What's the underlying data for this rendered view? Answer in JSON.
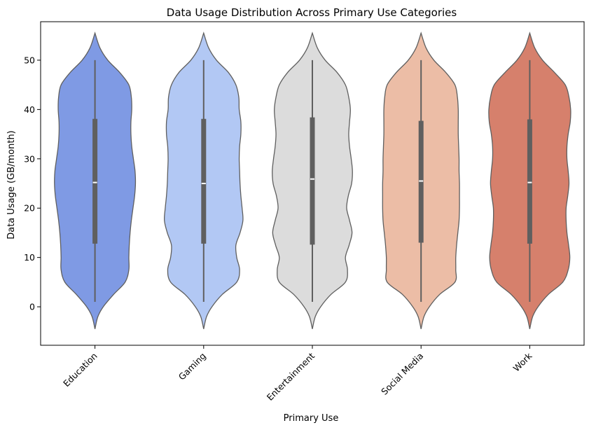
{
  "chart_data": {
    "type": "violin",
    "title": "Data Usage Distribution Across Primary Use Categories",
    "xlabel": "Primary Use",
    "ylabel": "Data Usage (GB/month)",
    "ylim": [
      -7.8,
      57.8
    ],
    "yticks": [
      0,
      10,
      20,
      30,
      40,
      50
    ],
    "grid": false,
    "legend": "none",
    "categories": [
      "Education",
      "Gaming",
      "Entertainment",
      "Social Media",
      "Work"
    ],
    "colors": [
      "#7f9ae4",
      "#b2c8f4",
      "#dcdcdc",
      "#ecbda6",
      "#d6806c"
    ],
    "edge_color": "#5f5f5f",
    "box_color": "#5f5f5f",
    "median_color": "#ffffff",
    "stats": [
      {
        "min": 1,
        "q1": 12.8,
        "median": 25.2,
        "q3": 38.1,
        "max": 50
      },
      {
        "min": 1,
        "q1": 12.8,
        "median": 25.0,
        "q3": 38.1,
        "max": 50
      },
      {
        "min": 1,
        "q1": 12.6,
        "median": 25.9,
        "q3": 38.4,
        "max": 50
      },
      {
        "min": 1,
        "q1": 13.0,
        "median": 25.5,
        "q3": 37.7,
        "max": 50
      },
      {
        "min": 1,
        "q1": 12.8,
        "median": 25.2,
        "q3": 38.0,
        "max": 50
      }
    ],
    "density_y": [
      -4.5,
      -2,
      0,
      2.5,
      5,
      7.5,
      10,
      12.5,
      15,
      17.5,
      20,
      22.5,
      25,
      27.5,
      30,
      32.5,
      35,
      37.5,
      40,
      42.5,
      45,
      47.5,
      50,
      52.5,
      55.5
    ],
    "density": [
      [
        0.0,
        0.07,
        0.2,
        0.45,
        0.73,
        0.82,
        0.82,
        0.83,
        0.85,
        0.88,
        0.92,
        0.96,
        0.98,
        0.97,
        0.93,
        0.89,
        0.87,
        0.87,
        0.89,
        0.88,
        0.82,
        0.6,
        0.31,
        0.12,
        0.0
      ],
      [
        0.0,
        0.07,
        0.2,
        0.45,
        0.8,
        0.87,
        0.8,
        0.78,
        0.88,
        0.95,
        0.93,
        0.9,
        0.88,
        0.87,
        0.86,
        0.87,
        0.9,
        0.9,
        0.86,
        0.85,
        0.78,
        0.6,
        0.31,
        0.12,
        0.0
      ],
      [
        0.0,
        0.07,
        0.2,
        0.45,
        0.8,
        0.85,
        0.8,
        0.89,
        0.96,
        0.9,
        0.83,
        0.87,
        0.95,
        0.97,
        0.94,
        0.9,
        0.88,
        0.9,
        0.92,
        0.88,
        0.8,
        0.6,
        0.31,
        0.12,
        0.0
      ],
      [
        0.0,
        0.07,
        0.2,
        0.45,
        0.82,
        0.84,
        0.84,
        0.86,
        0.89,
        0.92,
        0.93,
        0.93,
        0.93,
        0.92,
        0.92,
        0.91,
        0.9,
        0.9,
        0.9,
        0.88,
        0.82,
        0.6,
        0.31,
        0.12,
        0.0
      ],
      [
        0.0,
        0.07,
        0.2,
        0.45,
        0.8,
        0.93,
        0.97,
        0.94,
        0.9,
        0.88,
        0.88,
        0.92,
        0.95,
        0.93,
        0.9,
        0.9,
        0.93,
        0.98,
        0.99,
        0.95,
        0.86,
        0.6,
        0.31,
        0.12,
        0.0
      ]
    ]
  }
}
